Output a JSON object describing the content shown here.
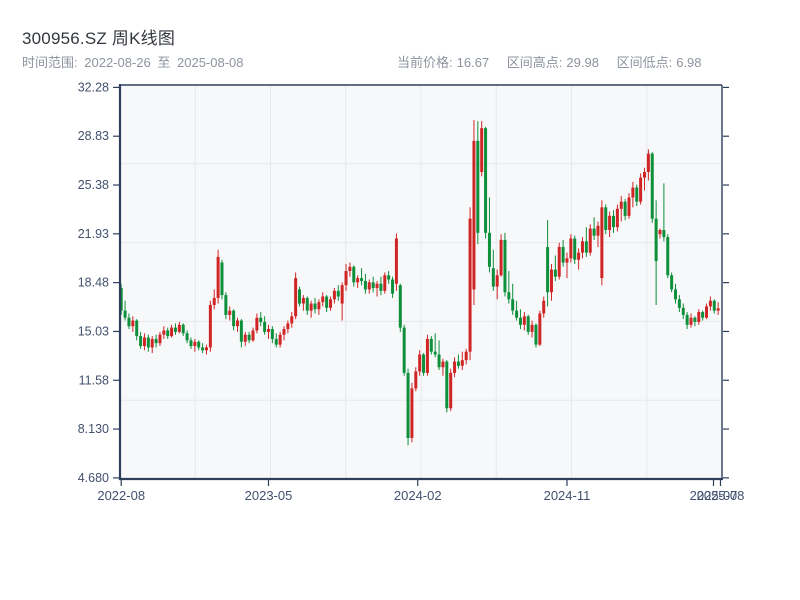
{
  "header": {
    "title": "300956.SZ 周K线图",
    "time_range": {
      "label": "时间范围:",
      "from": "2022-08-26",
      "separator": "至",
      "to": "2025-08-08"
    },
    "stats": [
      {
        "label": "当前价格:",
        "value": "16.67"
      },
      {
        "label": "区间高点:",
        "value": "29.98"
      },
      {
        "label": "区间低点:",
        "value": "6.98"
      }
    ]
  },
  "chart_data": {
    "type": "candlestick",
    "title": "300956.SZ 周K线图",
    "interval": "weekly",
    "date_start": "2022-08-26",
    "date_end": "2025-08-08",
    "current_price": 16.67,
    "range_high": 29.98,
    "range_low": 6.98,
    "up_color": "#d02525",
    "down_color": "#0e8f3a",
    "axis_color": "#2e3f5c",
    "grid_color": "#e6e8ec",
    "plot_bg": "#f7f8fa",
    "tick_label_color": "#42516d",
    "grid": {
      "v_divisions": 8,
      "h_divisions": 5
    },
    "y_axis": {
      "range": [
        4.6,
        32.45
      ],
      "ticks": [
        "32.28",
        "28.83",
        "25.38",
        "21.93",
        "18.48",
        "15.03",
        "11.58",
        "8.130",
        "4.680"
      ],
      "tick_values": [
        32.28,
        28.83,
        25.38,
        21.93,
        18.48,
        15.03,
        11.58,
        8.13,
        4.68
      ]
    },
    "x_axis": {
      "ticks": [
        {
          "idx": 0,
          "label": "2022-08"
        },
        {
          "idx": 38,
          "label": "2023-05"
        },
        {
          "idx": 76.5,
          "label": "2024-02"
        },
        {
          "idx": 115,
          "label": "2024-11"
        },
        {
          "idx": 152.8,
          "label": "2025-07"
        },
        {
          "idx": 154.6,
          "label": "2025-08"
        }
      ]
    },
    "ohlc": [
      [
        18.1,
        18.4,
        16.2,
        16.5
      ],
      [
        16.5,
        17.2,
        15.8,
        16.0
      ],
      [
        16.0,
        16.3,
        15.2,
        15.4
      ],
      [
        15.4,
        16.1,
        15.0,
        15.8
      ],
      [
        15.8,
        15.9,
        14.4,
        14.7
      ],
      [
        14.7,
        15.0,
        13.8,
        14.0
      ],
      [
        14.0,
        14.9,
        13.7,
        14.6
      ],
      [
        14.6,
        14.8,
        13.6,
        13.9
      ],
      [
        13.9,
        14.7,
        13.5,
        14.5
      ],
      [
        14.5,
        14.8,
        13.9,
        14.2
      ],
      [
        14.2,
        15.0,
        14.0,
        14.8
      ],
      [
        14.8,
        15.4,
        14.5,
        15.1
      ],
      [
        15.1,
        15.3,
        14.5,
        14.7
      ],
      [
        14.7,
        15.5,
        14.6,
        15.3
      ],
      [
        15.3,
        15.6,
        14.8,
        15.0
      ],
      [
        15.0,
        15.7,
        14.9,
        15.5
      ],
      [
        15.5,
        15.6,
        14.7,
        14.9
      ],
      [
        14.9,
        15.1,
        14.2,
        14.4
      ],
      [
        14.4,
        14.6,
        13.8,
        14.0
      ],
      [
        14.0,
        14.5,
        13.6,
        14.3
      ],
      [
        14.3,
        14.4,
        13.7,
        13.9
      ],
      [
        13.9,
        14.2,
        13.5,
        13.7
      ],
      [
        13.7,
        14.1,
        13.4,
        13.9
      ],
      [
        13.9,
        17.2,
        13.6,
        16.9
      ],
      [
        16.9,
        18.0,
        16.6,
        17.4
      ],
      [
        17.4,
        20.8,
        17.0,
        20.3
      ],
      [
        19.9,
        20.1,
        17.3,
        17.6
      ],
      [
        17.6,
        17.8,
        15.9,
        16.2
      ],
      [
        16.2,
        16.8,
        15.8,
        16.5
      ],
      [
        16.5,
        16.6,
        15.1,
        15.4
      ],
      [
        15.4,
        16.0,
        15.0,
        15.8
      ],
      [
        15.8,
        15.9,
        13.9,
        14.3
      ],
      [
        14.3,
        15.0,
        14.0,
        14.8
      ],
      [
        14.8,
        15.0,
        14.2,
        14.4
      ],
      [
        14.4,
        15.3,
        14.3,
        15.1
      ],
      [
        15.1,
        16.3,
        14.9,
        16.0
      ],
      [
        16.0,
        16.4,
        15.4,
        15.7
      ],
      [
        15.7,
        16.1,
        14.8,
        15.0
      ],
      [
        15.0,
        15.5,
        14.5,
        15.2
      ],
      [
        15.2,
        15.4,
        14.2,
        14.5
      ],
      [
        14.5,
        14.9,
        13.9,
        14.1
      ],
      [
        14.1,
        15.0,
        13.9,
        14.8
      ],
      [
        14.8,
        15.4,
        14.4,
        15.2
      ],
      [
        15.2,
        15.8,
        14.9,
        15.6
      ],
      [
        15.6,
        16.4,
        15.3,
        16.1
      ],
      [
        16.1,
        19.2,
        15.9,
        18.8
      ],
      [
        18.0,
        18.2,
        16.8,
        17.0
      ],
      [
        17.0,
        17.6,
        16.5,
        17.4
      ],
      [
        17.4,
        17.5,
        16.2,
        16.5
      ],
      [
        16.5,
        17.2,
        16.0,
        17.0
      ],
      [
        17.0,
        17.4,
        16.3,
        16.6
      ],
      [
        16.6,
        17.3,
        16.2,
        17.1
      ],
      [
        17.1,
        17.8,
        16.8,
        17.5
      ],
      [
        17.5,
        17.6,
        16.4,
        16.7
      ],
      [
        16.7,
        17.5,
        16.5,
        17.3
      ],
      [
        17.3,
        18.1,
        17.0,
        17.9
      ],
      [
        17.9,
        18.3,
        17.2,
        17.5
      ],
      [
        17.0,
        18.5,
        15.8,
        18.3
      ],
      [
        18.3,
        19.8,
        17.9,
        19.3
      ],
      [
        19.3,
        19.9,
        18.9,
        19.6
      ],
      [
        19.6,
        19.7,
        18.2,
        18.5
      ],
      [
        18.5,
        19.0,
        18.1,
        18.8
      ],
      [
        18.8,
        19.5,
        18.3,
        18.6
      ],
      [
        18.6,
        19.1,
        17.7,
        18.0
      ],
      [
        18.0,
        18.7,
        17.7,
        18.5
      ],
      [
        18.5,
        18.9,
        17.8,
        18.1
      ],
      [
        18.1,
        18.6,
        17.5,
        18.4
      ],
      [
        18.4,
        18.9,
        17.6,
        17.9
      ],
      [
        17.9,
        19.2,
        17.7,
        19.0
      ],
      [
        19.0,
        19.3,
        18.4,
        18.7
      ],
      [
        18.7,
        18.9,
        17.4,
        17.7
      ],
      [
        18.4,
        21.96,
        17.9,
        21.6
      ],
      [
        18.3,
        18.4,
        15.0,
        15.3
      ],
      [
        15.3,
        15.5,
        11.9,
        12.1
      ],
      [
        12.1,
        12.4,
        6.98,
        7.5
      ],
      [
        7.5,
        11.4,
        7.2,
        11.0
      ],
      [
        11.0,
        12.5,
        10.8,
        12.2
      ],
      [
        12.2,
        13.7,
        11.9,
        13.4
      ],
      [
        13.4,
        13.5,
        11.9,
        12.1
      ],
      [
        12.1,
        14.8,
        11.9,
        14.5
      ],
      [
        14.5,
        14.7,
        13.4,
        13.6
      ],
      [
        13.6,
        14.9,
        13.2,
        13.4
      ],
      [
        13.4,
        14.4,
        12.3,
        12.5
      ],
      [
        12.5,
        13.1,
        11.9,
        12.9
      ],
      [
        12.9,
        13.0,
        9.3,
        9.6
      ],
      [
        9.6,
        12.4,
        9.4,
        12.1
      ],
      [
        12.1,
        13.2,
        11.8,
        12.9
      ],
      [
        12.9,
        13.4,
        12.4,
        12.6
      ],
      [
        12.6,
        13.6,
        12.3,
        13.0
      ],
      [
        13.0,
        13.8,
        12.7,
        13.6
      ],
      [
        13.6,
        23.8,
        13.0,
        23.0
      ],
      [
        18.0,
        29.98,
        16.9,
        28.5
      ],
      [
        28.5,
        29.9,
        21.2,
        22.0
      ],
      [
        26.3,
        29.9,
        26.0,
        29.4
      ],
      [
        29.4,
        29.5,
        21.6,
        22.0
      ],
      [
        22.0,
        24.5,
        19.2,
        19.6
      ],
      [
        19.5,
        20.8,
        17.9,
        18.2
      ],
      [
        18.2,
        19.4,
        17.3,
        19.0
      ],
      [
        19.0,
        21.9,
        18.9,
        21.5
      ],
      [
        21.5,
        22.0,
        17.5,
        17.8
      ],
      [
        17.8,
        19.3,
        17.0,
        17.3
      ],
      [
        17.3,
        18.4,
        16.2,
        16.5
      ],
      [
        16.5,
        17.2,
        15.8,
        16.0
      ],
      [
        16.0,
        16.6,
        15.2,
        15.5
      ],
      [
        15.5,
        16.4,
        15.1,
        16.1
      ],
      [
        16.1,
        16.2,
        14.8,
        15.0
      ],
      [
        15.0,
        15.8,
        14.6,
        15.5
      ],
      [
        15.5,
        15.6,
        13.9,
        14.1
      ],
      [
        14.1,
        16.5,
        14.0,
        16.3
      ],
      [
        16.3,
        17.5,
        16.0,
        17.2
      ],
      [
        21.0,
        22.9,
        16.8,
        17.8
      ],
      [
        17.8,
        19.8,
        17.2,
        19.4
      ],
      [
        19.4,
        20.4,
        18.6,
        18.9
      ],
      [
        18.9,
        21.3,
        18.7,
        21.0
      ],
      [
        21.0,
        21.5,
        19.6,
        19.9
      ],
      [
        19.9,
        20.6,
        18.8,
        20.2
      ],
      [
        20.2,
        21.9,
        19.9,
        21.6
      ],
      [
        21.6,
        21.8,
        19.8,
        20.1
      ],
      [
        20.1,
        20.9,
        19.4,
        20.6
      ],
      [
        20.6,
        21.7,
        20.2,
        21.4
      ],
      [
        21.4,
        22.4,
        20.3,
        20.6
      ],
      [
        20.6,
        22.6,
        20.4,
        22.3
      ],
      [
        22.3,
        23.1,
        21.5,
        21.8
      ],
      [
        21.8,
        22.8,
        21.0,
        22.5
      ],
      [
        18.8,
        24.3,
        18.3,
        23.8
      ],
      [
        23.8,
        24.0,
        21.9,
        22.2
      ],
      [
        22.2,
        23.5,
        21.7,
        23.2
      ],
      [
        23.2,
        23.6,
        22.0,
        22.4
      ],
      [
        22.4,
        24.0,
        22.1,
        23.7
      ],
      [
        23.7,
        24.6,
        22.8,
        24.2
      ],
      [
        24.2,
        24.4,
        22.9,
        23.2
      ],
      [
        23.2,
        24.8,
        23.0,
        24.5
      ],
      [
        24.5,
        25.6,
        23.8,
        25.2
      ],
      [
        25.2,
        25.4,
        23.9,
        24.2
      ],
      [
        24.2,
        26.2,
        24.0,
        25.9
      ],
      [
        25.9,
        26.6,
        25.0,
        26.3
      ],
      [
        26.3,
        27.9,
        25.7,
        27.6
      ],
      [
        27.6,
        27.7,
        22.7,
        23.0
      ],
      [
        23.0,
        24.3,
        16.9,
        20.0
      ],
      [
        21.9,
        22.3,
        21.6,
        22.2
      ],
      [
        22.2,
        25.5,
        21.4,
        21.7
      ],
      [
        21.7,
        21.9,
        18.8,
        19.0
      ],
      [
        19.0,
        19.2,
        17.8,
        18.0
      ],
      [
        18.0,
        18.4,
        17.0,
        17.3
      ],
      [
        17.3,
        17.6,
        16.4,
        16.7
      ],
      [
        16.7,
        17.0,
        15.9,
        16.2
      ],
      [
        16.2,
        16.4,
        15.2,
        15.5
      ],
      [
        15.5,
        16.3,
        15.3,
        16.0
      ],
      [
        16.0,
        16.1,
        15.4,
        15.7
      ],
      [
        15.7,
        16.6,
        15.5,
        16.4
      ],
      [
        16.4,
        16.5,
        15.8,
        16.0
      ],
      [
        16.0,
        17.0,
        15.9,
        16.8
      ],
      [
        16.8,
        17.5,
        16.5,
        17.2
      ],
      [
        17.2,
        17.3,
        16.3,
        16.5
      ],
      [
        16.5,
        17.1,
        16.2,
        16.67
      ]
    ]
  }
}
